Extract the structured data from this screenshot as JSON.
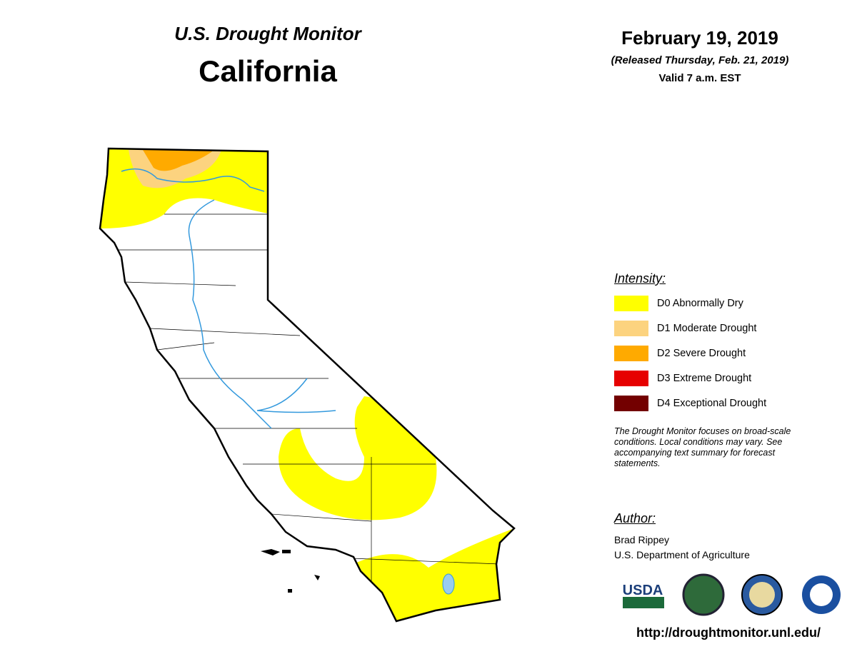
{
  "header": {
    "title": "U.S. Drought Monitor",
    "state": "California"
  },
  "date": {
    "date": "February 19, 2019",
    "released": "(Released Thursday, Feb. 21, 2019)",
    "valid": "Valid 7 a.m. EST"
  },
  "legend": {
    "title": "Intensity:",
    "items": [
      {
        "label": "D0 Abnormally Dry",
        "color": "#ffff00"
      },
      {
        "label": "D1 Moderate Drought",
        "color": "#fcd37f"
      },
      {
        "label": "D2 Severe Drought",
        "color": "#ffaa00"
      },
      {
        "label": "D3 Extreme Drought",
        "color": "#e60000"
      },
      {
        "label": "D4 Exceptional Drought",
        "color": "#730000"
      }
    ]
  },
  "note": "The Drought Monitor focuses on broad-scale conditions. Local conditions may vary. See accompanying text summary for forecast statements.",
  "author": {
    "title": "Author:",
    "name": "Brad Rippey",
    "org": "U.S. Department of Agriculture"
  },
  "logos": {
    "usda": "USDA"
  },
  "url": "http://droughtmonitor.unl.edu/"
}
